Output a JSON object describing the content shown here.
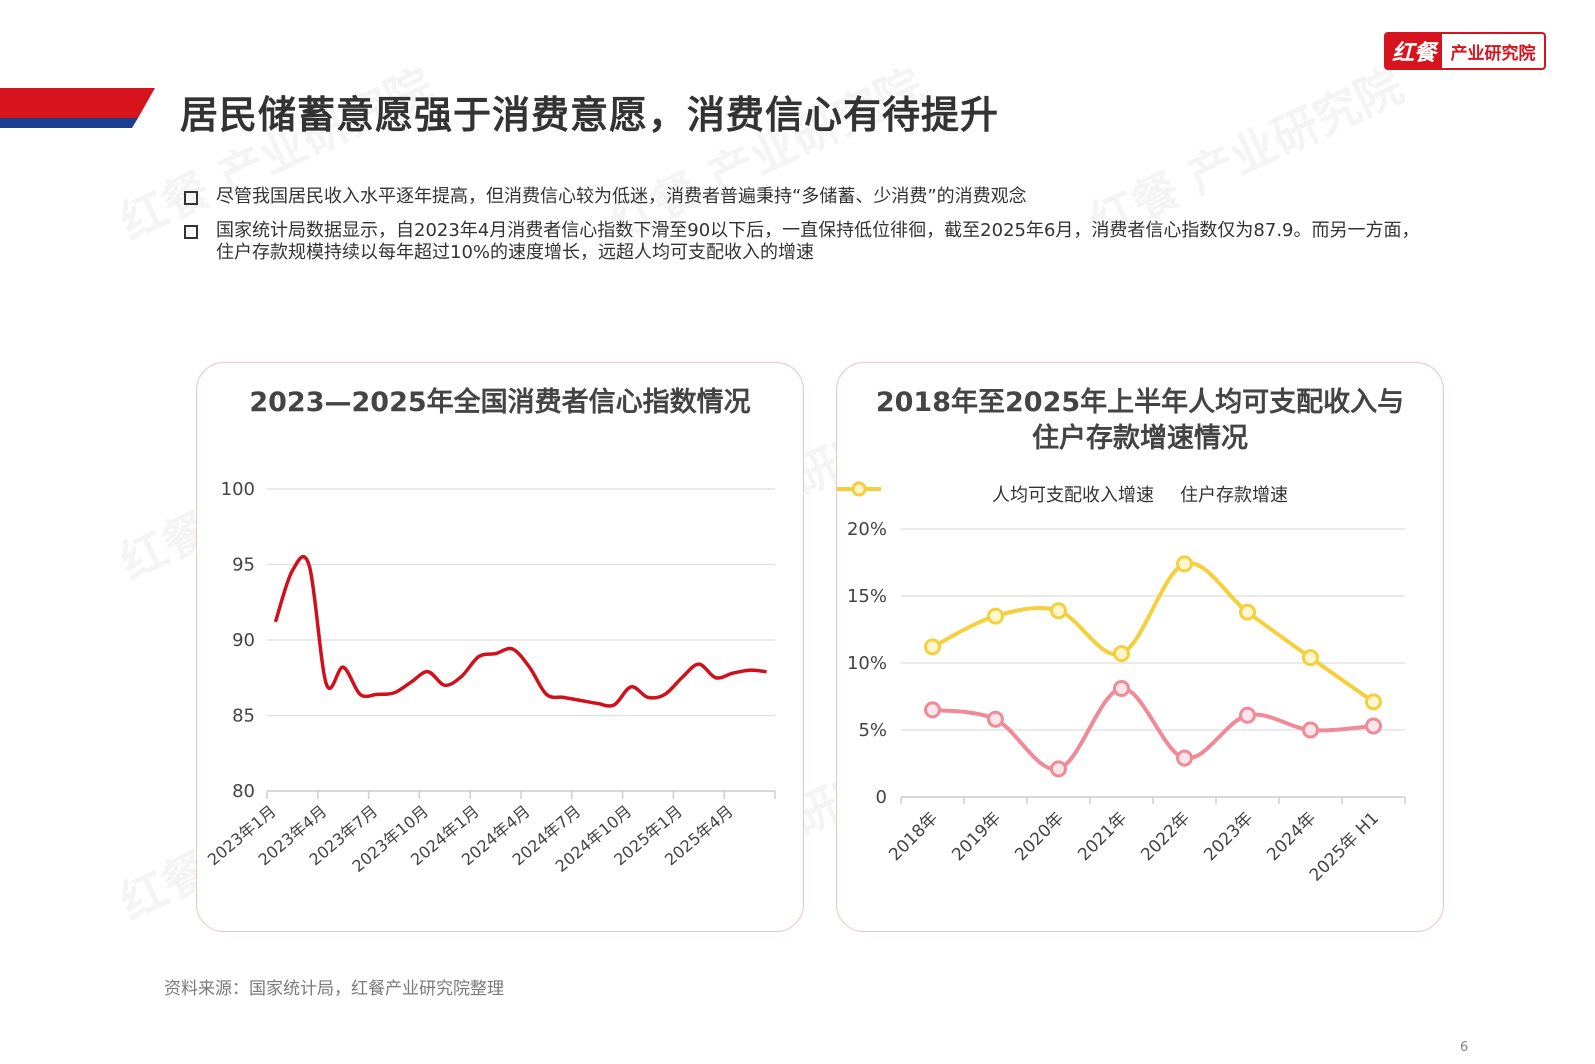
{
  "header": {
    "title": "居民储蓄意愿强于消费意愿，消费信心有待提升",
    "logo_brand": "红餐",
    "logo_sub": "产业研究院",
    "watermark": "红餐 产业研究院"
  },
  "bullets": [
    "尽管我国居民收入水平逐年提高，但消费信心较为低迷，消费者普遍秉持“多储蓄、少消费”的消费观念",
    "国家统计局数据显示，自2023年4月消费者信心指数下滑至90以下后，一直保持低位徘徊，截至2025年6月，消费者信心指数仅为87.9。而另一方面，住户存款规模持续以每年超过10%的速度增长，远超人均可支配收入的增速"
  ],
  "colors": {
    "accent_red": "#d7141e",
    "title_bar_blue": "#1d3d8f",
    "line_red": "#d0111b",
    "pink": "#f08a96",
    "yellow": "#f5cf3c",
    "card_border": "#f3c2c6"
  },
  "chart_data": [
    {
      "type": "line",
      "title": "2023—2025年全国消费者信心指数情况",
      "xlabel": "",
      "ylabel": "",
      "ylim": [
        80,
        100
      ],
      "yticks": [
        "100",
        "95",
        "90",
        "85",
        "80"
      ],
      "categories": [
        "2023年1月",
        "2023年2月",
        "2023年3月",
        "2023年4月",
        "2023年5月",
        "2023年6月",
        "2023年7月",
        "2023年8月",
        "2023年9月",
        "2023年10月",
        "2023年11月",
        "2023年12月",
        "2024年1月",
        "2024年2月",
        "2024年3月",
        "2024年4月",
        "2024年5月",
        "2024年6月",
        "2024年7月",
        "2024年8月",
        "2024年9月",
        "2024年10月",
        "2024年11月",
        "2024年12月",
        "2025年1月",
        "2025年2月",
        "2025年3月",
        "2025年4月",
        "2025年5月",
        "2025年6月"
      ],
      "tick_labels": [
        "2023年1月",
        "2023年4月",
        "2023年7月",
        "2023年10月",
        "2024年1月",
        "2024年4月",
        "2024年7月",
        "2024年10月",
        "2025年1月",
        "2025年4月"
      ],
      "series": [
        {
          "values": [
            91.2,
            94.6,
            94.9,
            87.1,
            88.2,
            86.4,
            86.4,
            86.5,
            87.2,
            87.9,
            87.0,
            87.6,
            88.9,
            89.1,
            89.4,
            88.2,
            86.4,
            86.2,
            86.0,
            85.8,
            85.7,
            86.9,
            86.2,
            86.4,
            87.5,
            88.4,
            87.5,
            87.8,
            88.0,
            87.9
          ]
        }
      ],
      "grid": true
    },
    {
      "type": "line",
      "title": "2018年至2025年上半年人均可支配收入与住户存款增速情况",
      "title_lines": [
        "2018年至2025年上半年人均可支配收入与",
        "住户存款增速情况"
      ],
      "categories": [
        "2018年",
        "2019年",
        "2020年",
        "2021年",
        "2022年",
        "2023年",
        "2024年",
        "2025年 H1"
      ],
      "ylim": [
        0,
        20
      ],
      "yticks": [
        "20%",
        "15%",
        "10%",
        "5%",
        "0"
      ],
      "legend_position": "top",
      "series": [
        {
          "name": "人均可支配收入增速",
          "values": [
            6.5,
            5.8,
            2.1,
            8.1,
            2.9,
            6.1,
            5.0,
            5.3
          ]
        },
        {
          "name": "住户存款增速",
          "values": [
            11.2,
            13.5,
            13.9,
            10.7,
            17.4,
            13.8,
            10.4,
            7.1
          ]
        }
      ],
      "grid": true
    }
  ],
  "source": "资料来源：国家统计局，红餐产业研究院整理",
  "page_number": "6"
}
